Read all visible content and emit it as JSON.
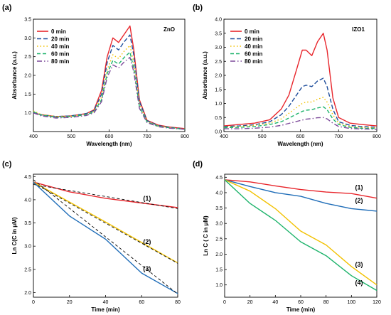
{
  "chart_data": [
    {
      "id": "a",
      "panel_label": "(a)",
      "type": "line",
      "sample_label": "ZnO",
      "xlabel": "Wavelength (nm)",
      "ylabel": "Absorbance (a.u.)",
      "xlim": [
        400,
        800
      ],
      "ylim": [
        0.5,
        3.5
      ],
      "xticks": [
        "400",
        "500",
        "600",
        "700",
        "800"
      ],
      "yticks": [
        "1.0",
        "1.5",
        "2.0",
        "2.5",
        "3.0",
        "3.5"
      ],
      "legend_position": "top-left",
      "series": [
        {
          "name": "0 min",
          "color": "#e8262c",
          "dash": "solid",
          "x": [
            400,
            420,
            460,
            500,
            540,
            560,
            580,
            595,
            610,
            625,
            640,
            655,
            665,
            680,
            700,
            730,
            760,
            800
          ],
          "y": [
            1.0,
            0.95,
            0.9,
            0.92,
            0.98,
            1.08,
            1.6,
            2.5,
            3.0,
            2.88,
            3.1,
            3.32,
            2.7,
            1.35,
            0.8,
            0.67,
            0.62,
            0.58
          ]
        },
        {
          "name": "20 min",
          "color": "#1f4e9c",
          "dash": "6,3",
          "x": [
            400,
            420,
            460,
            500,
            540,
            560,
            580,
            595,
            610,
            625,
            640,
            655,
            665,
            680,
            700,
            730,
            760,
            800
          ],
          "y": [
            1.0,
            0.95,
            0.9,
            0.92,
            0.98,
            1.06,
            1.5,
            2.35,
            2.8,
            2.68,
            2.9,
            3.08,
            2.55,
            1.3,
            0.79,
            0.66,
            0.61,
            0.57
          ]
        },
        {
          "name": "40 min",
          "color": "#f2c100",
          "dash": "1.5,3",
          "x": [
            400,
            420,
            460,
            500,
            540,
            560,
            580,
            595,
            610,
            625,
            640,
            655,
            665,
            680,
            700,
            730,
            760,
            800
          ],
          "y": [
            1.05,
            0.96,
            0.9,
            0.91,
            0.96,
            1.04,
            1.42,
            2.15,
            2.55,
            2.45,
            2.65,
            2.8,
            2.35,
            1.22,
            0.77,
            0.65,
            0.6,
            0.57
          ]
        },
        {
          "name": "60 min",
          "color": "#1db36b",
          "dash": "5,3",
          "x": [
            400,
            420,
            460,
            500,
            540,
            560,
            580,
            595,
            610,
            625,
            640,
            655,
            665,
            680,
            700,
            730,
            760,
            800
          ],
          "y": [
            1.03,
            0.94,
            0.88,
            0.9,
            0.95,
            1.02,
            1.35,
            2.05,
            2.4,
            2.3,
            2.48,
            2.62,
            2.2,
            1.17,
            0.76,
            0.64,
            0.6,
            0.56
          ]
        },
        {
          "name": "80 min",
          "color": "#7d4a9a",
          "dash": "7,3,1.5,3",
          "x": [
            400,
            420,
            460,
            500,
            540,
            560,
            580,
            595,
            610,
            625,
            640,
            655,
            665,
            680,
            700,
            730,
            760,
            800
          ],
          "y": [
            1.0,
            0.92,
            0.86,
            0.88,
            0.93,
            1.0,
            1.3,
            1.95,
            2.28,
            2.2,
            2.36,
            2.48,
            2.1,
            1.12,
            0.74,
            0.63,
            0.59,
            0.56
          ]
        }
      ]
    },
    {
      "id": "b",
      "panel_label": "(b)",
      "type": "line",
      "sample_label": "IZO1",
      "xlabel": "Wavelength (nm)",
      "ylabel": "Absorbance (a.u.)",
      "xlim": [
        400,
        800
      ],
      "ylim": [
        0.0,
        4.0
      ],
      "xticks": [
        "400",
        "500",
        "600",
        "700",
        "800"
      ],
      "yticks": [
        "0.0",
        "0.5",
        "1.0",
        "1.5",
        "2.0",
        "2.5",
        "3.0",
        "3.5",
        "4.0"
      ],
      "legend_position": "top-left",
      "series": [
        {
          "name": "0 min",
          "color": "#e8262c",
          "dash": "solid",
          "x": [
            400,
            440,
            480,
            520,
            550,
            570,
            590,
            605,
            615,
            630,
            645,
            660,
            670,
            685,
            700,
            730,
            760,
            800
          ],
          "y": [
            0.2,
            0.25,
            0.3,
            0.42,
            0.8,
            1.3,
            2.2,
            2.9,
            2.9,
            2.7,
            3.2,
            3.5,
            2.9,
            1.2,
            0.5,
            0.3,
            0.25,
            0.2
          ]
        },
        {
          "name": "20 min",
          "color": "#1f4e9c",
          "dash": "6,3",
          "x": [
            400,
            440,
            480,
            520,
            550,
            570,
            590,
            605,
            615,
            630,
            645,
            660,
            670,
            685,
            700,
            730,
            760,
            800
          ],
          "y": [
            0.18,
            0.2,
            0.24,
            0.35,
            0.6,
            0.9,
            1.3,
            1.6,
            1.65,
            1.6,
            1.8,
            1.9,
            1.6,
            0.8,
            0.35,
            0.22,
            0.18,
            0.15
          ]
        },
        {
          "name": "40 min",
          "color": "#f2c100",
          "dash": "1.5,3",
          "x": [
            400,
            440,
            480,
            520,
            550,
            570,
            590,
            605,
            615,
            630,
            645,
            660,
            670,
            685,
            700,
            730,
            760,
            800
          ],
          "y": [
            0.16,
            0.18,
            0.22,
            0.3,
            0.45,
            0.65,
            0.85,
            1.0,
            1.05,
            1.05,
            1.15,
            1.22,
            1.05,
            0.6,
            0.3,
            0.18,
            0.15,
            0.13
          ]
        },
        {
          "name": "60 min",
          "color": "#1db36b",
          "dash": "5,3",
          "x": [
            400,
            440,
            480,
            520,
            550,
            570,
            590,
            605,
            615,
            630,
            645,
            660,
            670,
            685,
            700,
            730,
            760,
            800
          ],
          "y": [
            0.14,
            0.15,
            0.18,
            0.25,
            0.35,
            0.48,
            0.62,
            0.72,
            0.76,
            0.78,
            0.84,
            0.88,
            0.78,
            0.45,
            0.25,
            0.15,
            0.12,
            0.11
          ]
        },
        {
          "name": "80 min",
          "color": "#7d4a9a",
          "dash": "7,3,1.5,3",
          "x": [
            400,
            440,
            480,
            520,
            550,
            570,
            590,
            605,
            615,
            630,
            645,
            660,
            670,
            685,
            700,
            730,
            760,
            800
          ],
          "y": [
            0.1,
            0.1,
            0.12,
            0.16,
            0.22,
            0.29,
            0.36,
            0.41,
            0.44,
            0.46,
            0.49,
            0.5,
            0.45,
            0.3,
            0.18,
            0.11,
            0.09,
            0.08
          ]
        }
      ]
    },
    {
      "id": "c",
      "panel_label": "(c)",
      "type": "line",
      "xlabel": "Time (min)",
      "ylabel": "Ln C(C in μM)",
      "xlim": [
        0,
        80
      ],
      "ylim": [
        1.9,
        4.55
      ],
      "xticks": [
        "0",
        "20",
        "40",
        "60",
        "80"
      ],
      "yticks": [
        "2.0",
        "2.5",
        "3.0",
        "3.5",
        "4.0",
        "4.5"
      ],
      "annotations": [
        {
          "text": "(1)",
          "x": 63,
          "y": 3.98
        },
        {
          "text": "(2)",
          "x": 63,
          "y": 3.05
        },
        {
          "text": "(3)",
          "x": 63,
          "y": 2.47
        }
      ],
      "series": [
        {
          "name": "",
          "color": "#e8262c",
          "dash": "solid",
          "x": [
            0,
            20,
            40,
            60,
            80
          ],
          "y": [
            4.38,
            4.17,
            4.03,
            3.93,
            3.83
          ]
        },
        {
          "name": "",
          "color": "#000000",
          "dash": "4,3",
          "x": [
            0,
            80
          ],
          "y": [
            4.33,
            3.81
          ]
        },
        {
          "name": "",
          "color": "#f2c100",
          "dash": "solid",
          "x": [
            0,
            20,
            40,
            60,
            80
          ],
          "y": [
            4.38,
            3.95,
            3.52,
            3.08,
            2.64
          ]
        },
        {
          "name": "",
          "color": "#000000",
          "dash": "4,3",
          "x": [
            0,
            80
          ],
          "y": [
            4.36,
            2.63
          ]
        },
        {
          "name": "",
          "color": "#1f6db8",
          "dash": "solid",
          "x": [
            0,
            20,
            40,
            60,
            80
          ],
          "y": [
            4.38,
            3.65,
            3.15,
            2.42,
            1.98
          ]
        },
        {
          "name": "",
          "color": "#000000",
          "dash": "4,3",
          "x": [
            0,
            80
          ],
          "y": [
            4.43,
            1.97
          ]
        }
      ]
    },
    {
      "id": "d",
      "panel_label": "(d)",
      "type": "line",
      "xlabel": "Time (min)",
      "ylabel": "Ln C ( C in μM)",
      "xlim": [
        0,
        120
      ],
      "ylim": [
        0.6,
        4.6
      ],
      "xticks": [
        "0",
        "20",
        "40",
        "60",
        "80",
        "100",
        "120"
      ],
      "yticks": [
        "1.0",
        "1.5",
        "2.0",
        "2.5",
        "3.0",
        "3.5",
        "4.0",
        "4.5"
      ],
      "annotations": [
        {
          "text": "(1)",
          "x": 106,
          "y": 4.1
        },
        {
          "text": "(2)",
          "x": 106,
          "y": 3.68
        },
        {
          "text": "(3)",
          "x": 106,
          "y": 1.6
        },
        {
          "text": "(4)",
          "x": 106,
          "y": 1.0
        }
      ],
      "series": [
        {
          "name": "",
          "color": "#e8262c",
          "dash": "solid",
          "x": [
            0,
            20,
            40,
            60,
            80,
            100,
            120
          ],
          "y": [
            4.42,
            4.35,
            4.22,
            4.1,
            4.02,
            3.97,
            3.82
          ]
        },
        {
          "name": "",
          "color": "#1f6db8",
          "dash": "solid",
          "x": [
            0,
            20,
            40,
            60,
            80,
            100,
            120
          ],
          "y": [
            4.42,
            4.2,
            4.0,
            3.88,
            3.65,
            3.48,
            3.4
          ]
        },
        {
          "name": "",
          "color": "#f2c100",
          "dash": "solid",
          "x": [
            0,
            20,
            40,
            60,
            80,
            100,
            120
          ],
          "y": [
            4.42,
            4.05,
            3.48,
            2.75,
            2.3,
            1.6,
            1.0
          ]
        },
        {
          "name": "",
          "color": "#1db36b",
          "dash": "solid",
          "x": [
            0,
            20,
            40,
            60,
            80,
            100,
            120
          ],
          "y": [
            4.42,
            3.65,
            3.1,
            2.4,
            1.95,
            1.3,
            0.82
          ]
        }
      ]
    }
  ]
}
